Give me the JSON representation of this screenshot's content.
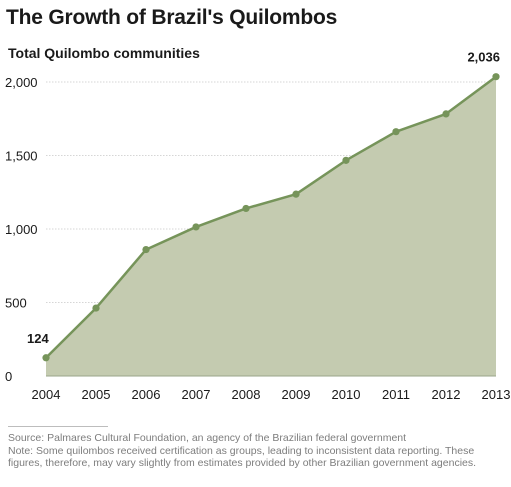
{
  "title": "The Growth of Brazil's Quilombos",
  "subtitle": "Total Quilombo communities",
  "footer": {
    "source": "Source: Palmares Cultural Foundation, an agency of the Brazilian federal government",
    "note": "Note: Some quilombos received certification as groups, leading to inconsistent data reporting. These figures, therefore, may vary slightly from estimates provided by other Brazilian government agencies."
  },
  "colors": {
    "area_fill": "#c4cbb0",
    "line": "#76945a",
    "marker": "#76945a",
    "grid": "#d6d6d6"
  },
  "chart_data": {
    "type": "area",
    "title": "The Growth of Brazil's Quilombos",
    "ylabel": "Total Quilombo communities",
    "xlabel": "",
    "x": [
      "2004",
      "2005",
      "2006",
      "2007",
      "2008",
      "2009",
      "2010",
      "2011",
      "2012",
      "2013"
    ],
    "series": [
      {
        "values": [
          124,
          462,
          860,
          1014,
          1140,
          1237,
          1467,
          1662,
          1783,
          2036
        ]
      }
    ],
    "ylim": [
      0,
      2000
    ],
    "yticks": [
      0,
      500,
      1000,
      1500,
      2000
    ],
    "ytick_labels": [
      "0",
      "500",
      "1,000",
      "1,500",
      "2,000"
    ],
    "grid": "horizontal",
    "markers": true,
    "data_labels": [
      {
        "index": 0,
        "text": "124"
      },
      {
        "index": 9,
        "text": "2,036"
      }
    ]
  }
}
